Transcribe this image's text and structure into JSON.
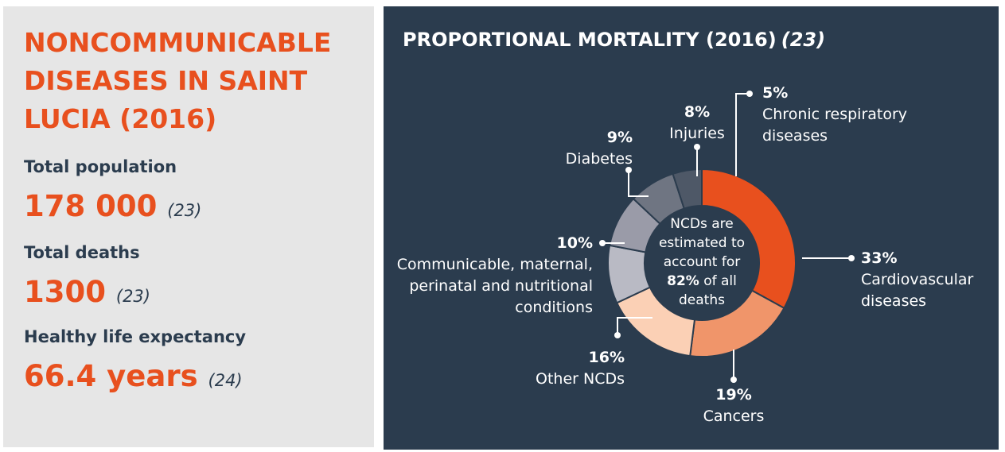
{
  "summary": {
    "title": "NONCOMMUNICABLE DISEASES IN SAINT LUCIA (2016)",
    "stats": [
      {
        "label": "Total population",
        "value": "178 000",
        "ref": "(23)"
      },
      {
        "label": "Total deaths",
        "value": "1300",
        "ref": "(23)"
      },
      {
        "label": "Healthy life expectancy",
        "value": "66.4 years",
        "ref": "(24)"
      }
    ]
  },
  "chart_data": {
    "type": "donut",
    "title": "PROPORTIONAL MORTALITY (2016)",
    "title_ref": "(23)",
    "categories": [
      "Cardiovascular diseases",
      "Cancers",
      "Other NCDs",
      "Communicable, maternal, perinatal and nutritional conditions",
      "Diabetes",
      "Injuries",
      "Chronic respiratory diseases"
    ],
    "values": [
      33,
      19,
      16,
      10,
      9,
      8,
      5
    ],
    "value_labels": [
      "33%",
      "19%",
      "16%",
      "10%",
      "9%",
      "8%",
      "5%"
    ],
    "colors": [
      "#e8501e",
      "#f0956a",
      "#fbd0b5",
      "#b9bac4",
      "#9a9ba8",
      "#6f7582",
      "#4e5867"
    ],
    "center_text": [
      "NCDs are estimated to account for",
      "82%",
      "of all deaths"
    ]
  }
}
